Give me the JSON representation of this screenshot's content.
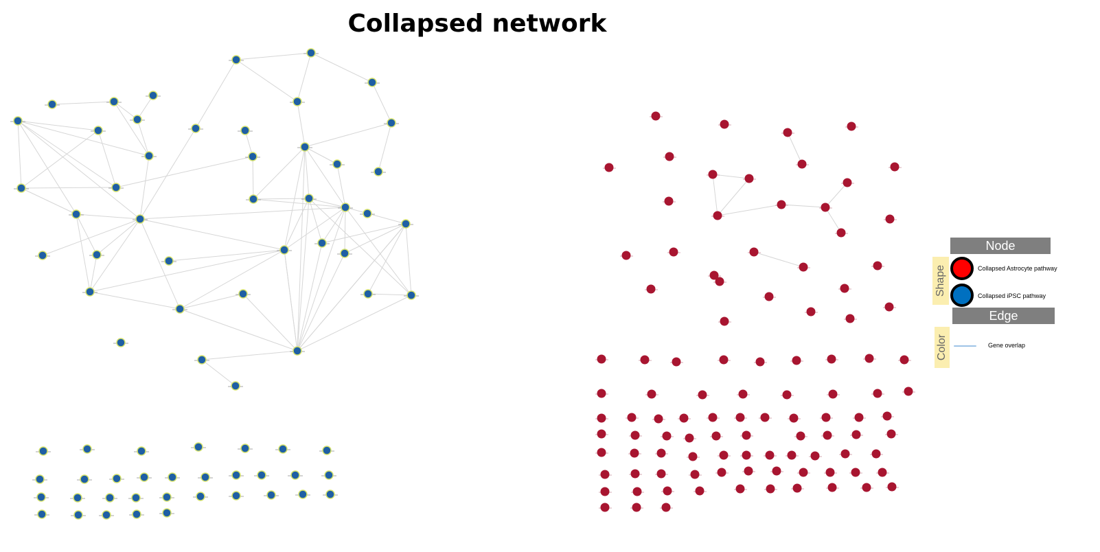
{
  "title": "Collapsed network",
  "colors": {
    "blue_node": "#1f5fa4",
    "blue_node_outline": "#d4e16a",
    "red_node": "#a81530",
    "edge": "#d6d6d6",
    "legend_red": "#ff0000",
    "legend_blue": "#0070c0",
    "legend_edge": "#9dc3e6"
  },
  "legend": {
    "node_header": "Node",
    "shape_label": "Shape",
    "items": [
      {
        "label": "Collapsed Astrocyte pathway",
        "color": "#ff0000"
      },
      {
        "label": "Collapsed iPSC pathway",
        "color": "#0070c0"
      }
    ],
    "edge_header": "Edge",
    "color_label": "Color",
    "edge_item": "Gene overlap"
  }
}
